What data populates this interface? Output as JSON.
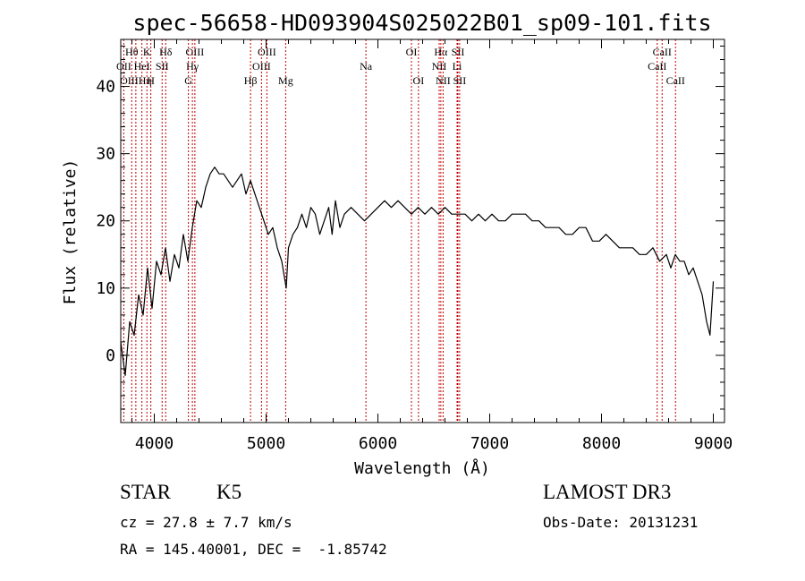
{
  "chart_data": {
    "type": "line",
    "title": "spec-56658-HD093904S025022B01_sp09-101.fits",
    "xlabel": "Wavelength (Å)",
    "ylabel": "Flux (relative)",
    "xlim": [
      3700,
      9100
    ],
    "ylim": [
      -10,
      47
    ],
    "xticks": [
      4000,
      5000,
      6000,
      7000,
      8000,
      9000
    ],
    "yticks": [
      0,
      10,
      20,
      30,
      40
    ],
    "series": [
      {
        "color": "#000000",
        "x": [
          3700,
          3740,
          3780,
          3820,
          3860,
          3900,
          3940,
          3980,
          4020,
          4060,
          4100,
          4140,
          4180,
          4220,
          4260,
          4300,
          4340,
          4380,
          4420,
          4460,
          4500,
          4540,
          4580,
          4620,
          4660,
          4700,
          4740,
          4780,
          4820,
          4860,
          4900,
          4940,
          4980,
          5020,
          5060,
          5100,
          5140,
          5180,
          5200,
          5240,
          5280,
          5320,
          5360,
          5400,
          5440,
          5480,
          5520,
          5560,
          5590,
          5620,
          5660,
          5700,
          5760,
          5820,
          5880,
          5940,
          6000,
          6060,
          6120,
          6180,
          6240,
          6300,
          6360,
          6420,
          6480,
          6540,
          6600,
          6660,
          6720,
          6780,
          6840,
          6900,
          6960,
          7020,
          7080,
          7140,
          7200,
          7260,
          7320,
          7380,
          7440,
          7500,
          7560,
          7620,
          7680,
          7740,
          7800,
          7860,
          7920,
          7980,
          8040,
          8100,
          8160,
          8220,
          8280,
          8340,
          8400,
          8460,
          8520,
          8580,
          8620,
          8660,
          8700,
          8740,
          8780,
          8820,
          8860,
          8900,
          8940,
          8970,
          9000
        ],
        "y": [
          2,
          -3,
          5,
          3,
          9,
          6,
          13,
          7,
          14,
          12,
          16,
          11,
          15,
          13,
          18,
          14,
          19,
          23,
          22,
          25,
          27,
          28,
          27,
          27,
          26,
          25,
          26,
          27,
          24,
          26,
          24,
          22,
          20,
          18,
          19,
          16,
          14,
          10,
          16,
          18,
          19,
          21,
          19,
          22,
          21,
          18,
          20,
          22,
          18,
          23,
          19,
          21,
          22,
          21,
          20,
          21,
          22,
          23,
          22,
          23,
          22,
          21,
          22,
          21,
          22,
          21,
          22,
          21,
          21,
          21,
          20,
          21,
          20,
          21,
          20,
          20,
          21,
          21,
          21,
          20,
          20,
          19,
          19,
          19,
          18,
          18,
          19,
          19,
          17,
          17,
          18,
          17,
          16,
          16,
          16,
          15,
          15,
          16,
          14,
          15,
          13,
          15,
          14,
          14,
          12,
          13,
          11,
          9,
          5,
          3,
          11
        ]
      }
    ],
    "spectral_lines": [
      {
        "label": "Hθ",
        "x": 3798,
        "row": 0
      },
      {
        "label": "OII",
        "x": 3727,
        "row": 1
      },
      {
        "label": "OIIIHη",
        "x": 3835,
        "row": 2
      },
      {
        "label": "K",
        "x": 3934,
        "row": 0
      },
      {
        "label": "HeI",
        "x": 3889,
        "row": 1
      },
      {
        "label": "SII",
        "x": 4070,
        "row": 1
      },
      {
        "label": "H",
        "x": 3969,
        "row": 2
      },
      {
        "label": "Hδ",
        "x": 4102,
        "row": 0
      },
      {
        "label": "OIII",
        "x": 4363,
        "row": 0
      },
      {
        "label": "Hγ",
        "x": 4341,
        "row": 1
      },
      {
        "label": "G",
        "x": 4305,
        "row": 2
      },
      {
        "label": "Hβ",
        "x": 4861,
        "row": 2
      },
      {
        "label": "OIII",
        "x": 5007,
        "row": 0
      },
      {
        "label": "OIII",
        "x": 4959,
        "row": 1
      },
      {
        "label": "Mg",
        "x": 5175,
        "row": 2
      },
      {
        "label": "Na",
        "x": 5893,
        "row": 1
      },
      {
        "label": "OI",
        "x": 6300,
        "row": 0
      },
      {
        "label": "OI",
        "x": 6363,
        "row": 2
      },
      {
        "label": "Hα",
        "x": 6563,
        "row": 0
      },
      {
        "label": "SII",
        "x": 6716,
        "row": 0
      },
      {
        "label": "NII",
        "x": 6548,
        "row": 1
      },
      {
        "label": "Li",
        "x": 6708,
        "row": 1
      },
      {
        "label": "NII",
        "x": 6583,
        "row": 2
      },
      {
        "label": "SII",
        "x": 6731,
        "row": 2
      },
      {
        "label": "CaII",
        "x": 8542,
        "row": 0
      },
      {
        "label": "CaII",
        "x": 8498,
        "row": 1
      },
      {
        "label": "CaII",
        "x": 8662,
        "row": 2
      }
    ],
    "grid": false
  },
  "info": {
    "class_label": "STAR",
    "subclass": "K5",
    "survey": "LAMOST DR3",
    "redshift": "cz = 27.8 ± 7.7 km/s",
    "obs_date": "Obs-Date: 20131231",
    "coords": "RA = 145.40001, DEC =  -1.85742"
  }
}
